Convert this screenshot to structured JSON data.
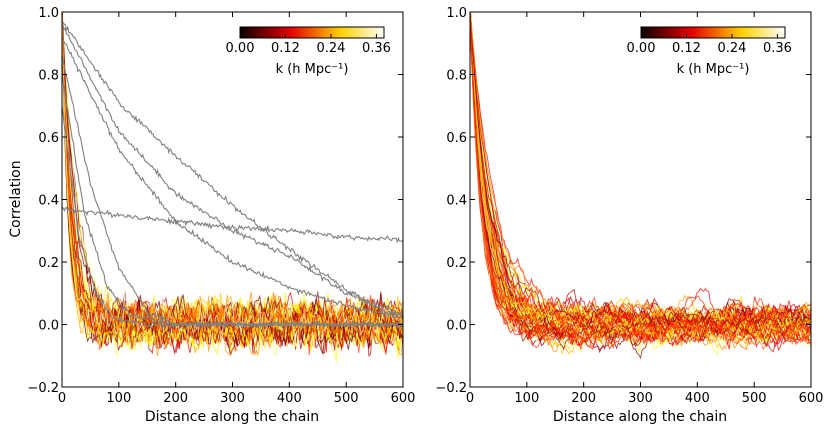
{
  "figure": {
    "ylabel": "Correlation",
    "xlabel": "Distance along the chain",
    "colorbar_label": "k (h Mpc⁻¹)"
  },
  "chart_data": [
    {
      "type": "line",
      "panel": "left",
      "xlabel": "Distance along the chain",
      "ylabel": "Correlation",
      "xlim": [
        0,
        600
      ],
      "ylim": [
        -0.2,
        1.0
      ],
      "xticks": [
        0,
        100,
        200,
        300,
        400,
        500,
        600
      ],
      "yticks": [
        -0.2,
        0.0,
        0.2,
        0.4,
        0.6,
        0.8,
        1.0
      ],
      "xtick_labels": [
        "0",
        "100",
        "200",
        "300",
        "400",
        "500",
        "600"
      ],
      "ytick_labels": [
        "−0.2",
        "0.0",
        "0.2",
        "0.4",
        "0.6",
        "0.8",
        "1.0"
      ],
      "colorbar": {
        "label": "k (h Mpc⁻¹)",
        "range": [
          0.0,
          0.38
        ],
        "ticks": [
          "0.00",
          "0.12",
          "0.24",
          "0.36"
        ],
        "colormap": "hot",
        "location": "upper-right"
      },
      "grey_series": [
        {
          "x": [
            0,
            100,
            200,
            300,
            400,
            500,
            570,
            600
          ],
          "y": [
            0.97,
            0.71,
            0.54,
            0.38,
            0.24,
            0.11,
            0.04,
            0.03
          ]
        },
        {
          "x": [
            0,
            100,
            200,
            300,
            400,
            500,
            600
          ],
          "y": [
            0.96,
            0.62,
            0.42,
            0.3,
            0.22,
            0.1,
            0.03
          ]
        },
        {
          "x": [
            0,
            100,
            200,
            300,
            400,
            500,
            600
          ],
          "y": [
            0.92,
            0.56,
            0.33,
            0.2,
            0.12,
            0.06,
            0.02
          ]
        },
        {
          "x": [
            0,
            50,
            100,
            200,
            300,
            400,
            500,
            600
          ],
          "y": [
            0.37,
            0.36,
            0.35,
            0.33,
            0.31,
            0.3,
            0.28,
            0.27
          ]
        },
        {
          "x": [
            0,
            50,
            100,
            150,
            200,
            300
          ],
          "y": [
            0.86,
            0.45,
            0.18,
            0.04,
            0.0,
            0.0
          ]
        },
        {
          "x": [
            0,
            40,
            80,
            120,
            200
          ],
          "y": [
            0.8,
            0.35,
            0.12,
            0.03,
            0.0
          ]
        },
        {
          "x": [
            0,
            30,
            60,
            90,
            150
          ],
          "y": [
            0.7,
            0.28,
            0.1,
            0.02,
            0.0
          ]
        }
      ],
      "colored_series_summary": {
        "count": 60,
        "initial_value": 1.0,
        "decay_scale": [
          10,
          30
        ],
        "plateau_mean": 0.0,
        "plateau_spread": 0.05
      }
    },
    {
      "type": "line",
      "panel": "right",
      "xlabel": "Distance along the chain",
      "xlim": [
        0,
        600
      ],
      "ylim": [
        -0.2,
        1.0
      ],
      "xticks": [
        0,
        100,
        200,
        300,
        400,
        500,
        600
      ],
      "yticks": [
        -0.2,
        0.0,
        0.2,
        0.4,
        0.6,
        0.8,
        1.0
      ],
      "xtick_labels": [
        "0",
        "100",
        "200",
        "300",
        "400",
        "500",
        "600"
      ],
      "ytick_labels": [
        "−0.2",
        "0.0",
        "0.2",
        "0.4",
        "0.6",
        "0.8",
        "1.0"
      ],
      "colorbar": {
        "label": "k (h Mpc⁻¹)",
        "range": [
          0.0,
          0.38
        ],
        "ticks": [
          "0.00",
          "0.12",
          "0.24",
          "0.36"
        ],
        "colormap": "hot",
        "location": "upper-right"
      },
      "colored_series_summary": {
        "count": 70,
        "initial_value": 1.0,
        "decay_scale": [
          20,
          55
        ],
        "plateau_mean": 0.0,
        "plateau_spread": 0.06
      }
    }
  ]
}
